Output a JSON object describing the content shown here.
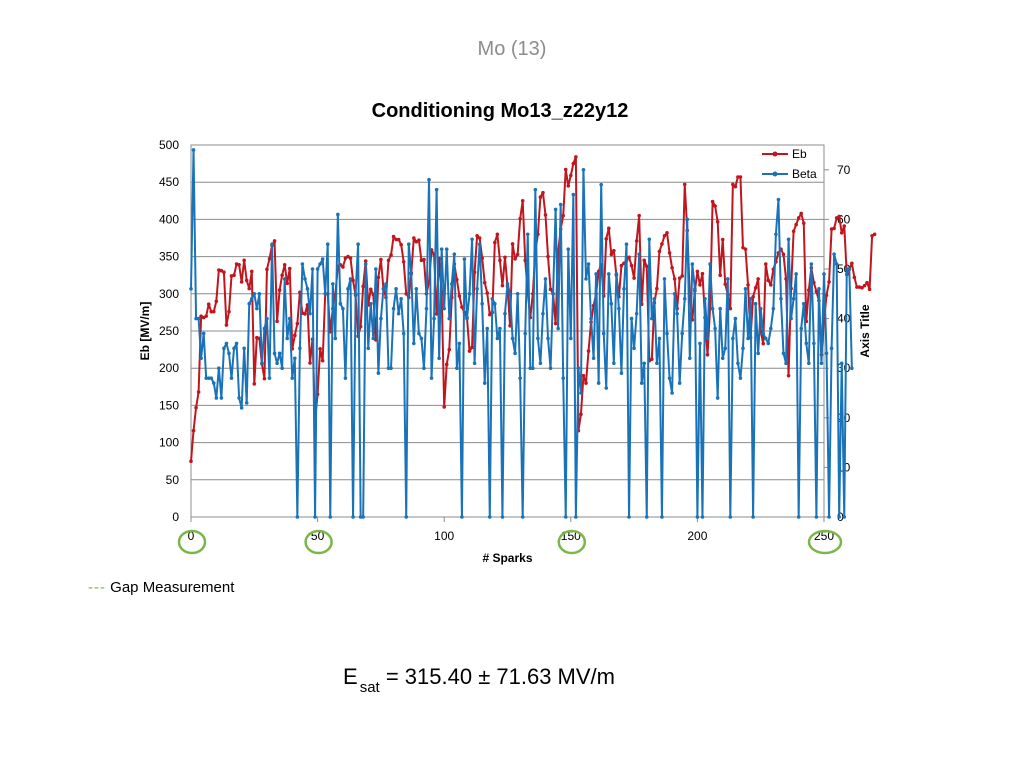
{
  "slide": {
    "title": "Mo (13)"
  },
  "footer": {
    "gap_label": "Gap Measurement",
    "gap_dash": "---",
    "formula_symbol": "E",
    "formula_subscript": "sat",
    "formula_value": "= 315.40 ± 71.63 MV/m"
  },
  "colors": {
    "eb": "#c0171f",
    "beta": "#1a73b8",
    "grid": "#8c8c8c",
    "gap_circle": "#7ab648"
  },
  "chart_data": {
    "type": "line",
    "title": "Conditioning Mo13_z22y12",
    "xlabel": "# Sparks",
    "ylabel": "Eb [MV/m]",
    "y2label": "Axis Title",
    "xlim": [
      0,
      250
    ],
    "ylim": [
      0,
      500
    ],
    "y2lim": [
      0,
      75
    ],
    "xticks": [
      0,
      50,
      100,
      150,
      200,
      250
    ],
    "yticks": [
      0,
      50,
      100,
      150,
      200,
      250,
      300,
      350,
      400,
      450,
      500
    ],
    "y2ticks": [
      0,
      10,
      20,
      30,
      40,
      50,
      60,
      70
    ],
    "grid": true,
    "legend_position": "top-right",
    "gap_measurements_at": [
      0,
      50,
      150,
      250
    ],
    "series": [
      {
        "name": "Eb",
        "axis": "left",
        "values": [
          75,
          116,
          147,
          168,
          270,
          268,
          270,
          286,
          276,
          276,
          290,
          332,
          331,
          329,
          258,
          276,
          324,
          325,
          340,
          339,
          316,
          345,
          318,
          307,
          330,
          179,
          241,
          240,
          206,
          186,
          333,
          347,
          365,
          371,
          263,
          305,
          325,
          339,
          314,
          334,
          226,
          244,
          260,
          302,
          274,
          273,
          285,
          207,
          239,
          131,
          165,
          226,
          210,
          300,
          300,
          249,
          280,
          299,
          337,
          339,
          336,
          348,
          350,
          348,
          318,
          298,
          243,
          256,
          310,
          344,
          285,
          306,
          299,
          238,
          322,
          346,
          307,
          295,
          345,
          352,
          377,
          373,
          373,
          366,
          343,
          300,
          295,
          328,
          375,
          370,
          372,
          345,
          346,
          300,
          316,
          359,
          353,
          273,
          347,
          300,
          148,
          205,
          225,
          295,
          340,
          319,
          297,
          282,
          275,
          268,
          223,
          228,
          329,
          378,
          375,
          348,
          315,
          301,
          272,
          275,
          369,
          380,
          345,
          311,
          349,
          310,
          257,
          367,
          347,
          353,
          401,
          425,
          345,
          302,
          268,
          300,
          357,
          380,
          430,
          436,
          406,
          350,
          306,
          300,
          260,
          356,
          387,
          405,
          467,
          445,
          459,
          475,
          484,
          116,
          138,
          190,
          180,
          223,
          262,
          284,
          300,
          330,
          339,
          297,
          374,
          388,
          353,
          358,
          325,
          296,
          338,
          341,
          345,
          349,
          338,
          321,
          371,
          405,
          286,
          345,
          337,
          210,
          212,
          288,
          307,
          357,
          367,
          378,
          382,
          355,
          335,
          320,
          280,
          321,
          324,
          447,
          385,
          298,
          265,
          304,
          330,
          312,
          327,
          268,
          218,
          280,
          424,
          418,
          397,
          325,
          373,
          313,
          299,
          280,
          447,
          444,
          457,
          457,
          362,
          360,
          312,
          241,
          296,
          308,
          320,
          250,
          233,
          340,
          318,
          312,
          333,
          343,
          355,
          360,
          353,
          320,
          190,
          307,
          384,
          393,
          402,
          408,
          395,
          263,
          305,
          335,
          315,
          303,
          291,
          218,
          263,
          298,
          316,
          387,
          388,
          402,
          404,
          382,
          391,
          326,
          333,
          341,
          322,
          309,
          309,
          308,
          311,
          315,
          306,
          378,
          380
        ]
      },
      {
        "name": "Beta",
        "axis": "right",
        "values": [
          46,
          74,
          40,
          40,
          32,
          37,
          28,
          28,
          28,
          27,
          24,
          30,
          24,
          34,
          35,
          33,
          28,
          34,
          35,
          24,
          22,
          34,
          23,
          43,
          44,
          45,
          42,
          45,
          31,
          38,
          40,
          28,
          55,
          33,
          31,
          33,
          30,
          48,
          36,
          40,
          28,
          32,
          0,
          34,
          51,
          48,
          46,
          41,
          50,
          0,
          50,
          51,
          52,
          45,
          55,
          0,
          47,
          36,
          61,
          43,
          42,
          28,
          46,
          48,
          0,
          45,
          55,
          0,
          0,
          51,
          34,
          43,
          36,
          50,
          29,
          40,
          46,
          47,
          30,
          30,
          42,
          46,
          41,
          44,
          37,
          0,
          55,
          49,
          35,
          46,
          37,
          36,
          30,
          42,
          68,
          28,
          40,
          66,
          32,
          54,
          42,
          54,
          40,
          47,
          53,
          30,
          35,
          0,
          52,
          40,
          45,
          56,
          31,
          46,
          55,
          43,
          27,
          38,
          0,
          44,
          43,
          36,
          38,
          0,
          41,
          47,
          45,
          36,
          33,
          45,
          28,
          0,
          37,
          57,
          30,
          30,
          66,
          36,
          31,
          41,
          48,
          36,
          30,
          45,
          62,
          38,
          63,
          28,
          0,
          54,
          36,
          65,
          0,
          30,
          25,
          70,
          48,
          51,
          40,
          32,
          49,
          27,
          67,
          37,
          26,
          49,
          43,
          31,
          49,
          42,
          29,
          46,
          55,
          0,
          40,
          34,
          41,
          53,
          27,
          31,
          0,
          56,
          40,
          44,
          31,
          36,
          0,
          48,
          37,
          28,
          25,
          45,
          41,
          27,
          37,
          44,
          60,
          32,
          51,
          46,
          0,
          35,
          0,
          44,
          36,
          51,
          42,
          38,
          24,
          42,
          32,
          34,
          48,
          0,
          36,
          40,
          31,
          28,
          34,
          46,
          36,
          44,
          0,
          43,
          33,
          42,
          37,
          36,
          35,
          38,
          42,
          57,
          64,
          44,
          33,
          31,
          56,
          40,
          44,
          49,
          0,
          38,
          43,
          35,
          31,
          51,
          35,
          0,
          46,
          31,
          49,
          33,
          0,
          34,
          53,
          51,
          0,
          31,
          0,
          50,
          50,
          30
        ]
      }
    ]
  }
}
